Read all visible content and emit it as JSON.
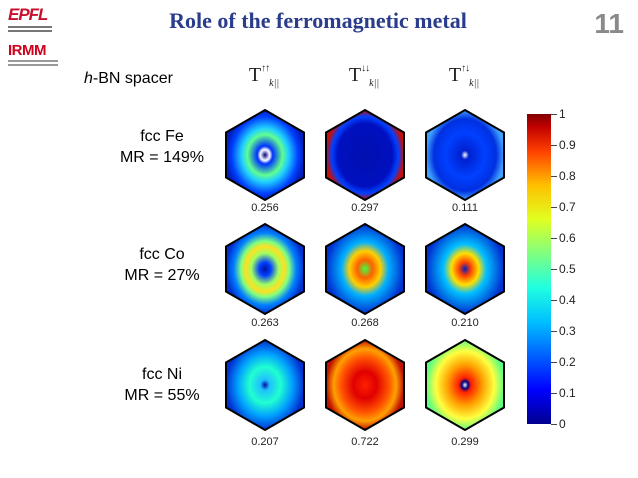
{
  "header": {
    "title": "Role of the ferromagnetic metal",
    "slide_number": "11",
    "logo_top": "EPFL",
    "logo_bottom": "IRMM"
  },
  "spacer_label_italic": "h",
  "spacer_label_rest": "-BN spacer",
  "columns": [
    {
      "symbol": "T",
      "spin": "↑↑",
      "subscript": "k||"
    },
    {
      "symbol": "T",
      "spin": "↓↓",
      "subscript": "k||"
    },
    {
      "symbol": "T",
      "spin": "↑↓",
      "subscript": "k||"
    }
  ],
  "rows": [
    {
      "name": "fcc Fe",
      "mr": "MR = 149%",
      "values": [
        "0.256",
        "0.297",
        "0.111"
      ]
    },
    {
      "name": "fcc Co",
      "mr": "MR = 27%",
      "values": [
        "0.263",
        "0.268",
        "0.210"
      ]
    },
    {
      "name": "fcc Ni",
      "mr": "MR = 55%",
      "values": [
        "0.207",
        "0.722",
        "0.299"
      ]
    }
  ],
  "colorbar": {
    "ticks": [
      "1",
      "0.9",
      "0.8",
      "0.7",
      "0.6",
      "0.5",
      "0.4",
      "0.3",
      "0.2",
      "0.1",
      "0"
    ],
    "min": 0,
    "max": 1,
    "colormap": "jet"
  },
  "colors": {
    "title": "#2a3c8c",
    "slide_number": "#8a8a8a",
    "logo": "#d0021b"
  }
}
